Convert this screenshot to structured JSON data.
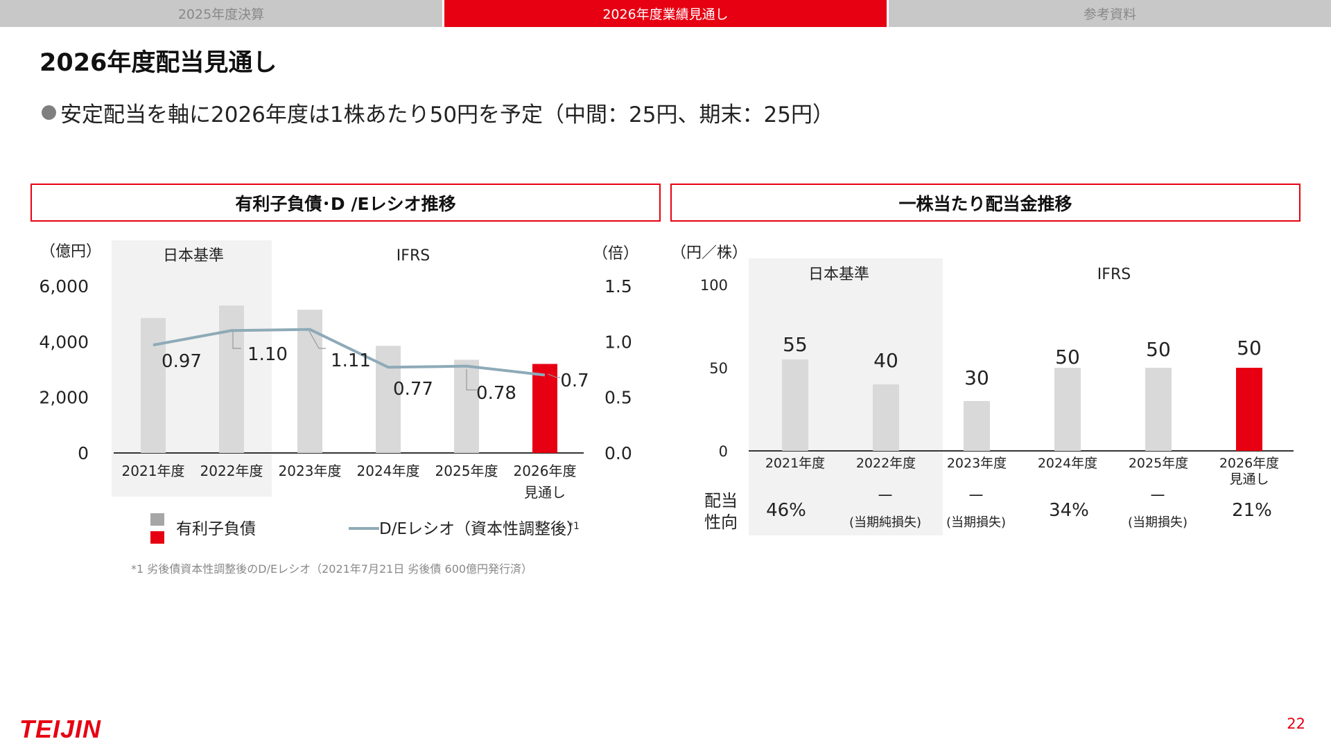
{
  "tabs": [
    {
      "label": "2025年度決算",
      "active": false
    },
    {
      "label": "2026年度業績見通し",
      "active": true
    },
    {
      "label": "参考資料",
      "active": false
    }
  ],
  "page_title": "2026年度配当見通し",
  "bullet": "安定配当を軸に2026年度は1株あたり50円を予定（中間：25円、期末：25円）",
  "left_panel": {
    "title": "有利子負債･D /Eレシオ推移",
    "y_left_unit": "（億円）",
    "y_right_unit": "（倍）",
    "region_labels": [
      "日本基準",
      "IFRS"
    ],
    "legend_debt": "有利子負債",
    "legend_de": "D/Eレシオ（資本性調整後）",
    "legend_de_note": "*1",
    "footnote": "*1 劣後債資本性調整後のD/Eレシオ（2021年7月21日 劣後債 600億円発行済）"
  },
  "right_panel": {
    "title": "一株当たり配当金推移",
    "y_unit": "（円／株）",
    "region_labels": [
      "日本基準",
      "IFRS"
    ],
    "payout_label_1": "配当",
    "payout_label_2": "性向"
  },
  "colors": {
    "accent": "#e60012",
    "bar": "#d9d9d9",
    "bar_legend": "#a6a6a6",
    "line": "#8eaab7",
    "shade": "#f2f2f2"
  },
  "chart_data": [
    {
      "type": "bar",
      "title": "有利子負債･D /Eレシオ推移",
      "categories": [
        "2021年度",
        "2022年度",
        "2023年度",
        "2024年度",
        "2025年度",
        "2026年度\n見通し"
      ],
      "y_ticks": [
        "6,000",
        "4,000",
        "2,000",
        "0"
      ],
      "y2_ticks": [
        "1.5",
        "1.0",
        "0.5",
        "0.0"
      ],
      "ylim": [
        0,
        6000
      ],
      "y2lim": [
        0,
        1.5
      ],
      "series": [
        {
          "name": "有利子負債",
          "type": "bar",
          "values": [
            4850,
            5300,
            5150,
            3850,
            3350,
            3200
          ]
        },
        {
          "name": "D/Eレシオ（資本性調整後）",
          "type": "line",
          "axis": "right",
          "values": [
            0.97,
            1.1,
            1.11,
            0.77,
            0.78,
            0.7
          ],
          "labels": [
            "0.97",
            "1.10",
            "1.11",
            "0.77",
            "0.78",
            "0.7"
          ]
        }
      ],
      "highlight_last": true
    },
    {
      "type": "bar",
      "title": "一株当たり配当金推移",
      "categories": [
        "2021年度",
        "2022年度",
        "2023年度",
        "2024年度",
        "2025年度",
        "2026年度\n見通し"
      ],
      "y_ticks": [
        "100",
        "50",
        "0"
      ],
      "ylim": [
        0,
        100
      ],
      "series": [
        {
          "name": "一株当たり配当金",
          "values": [
            55,
            40,
            30,
            50,
            50,
            50
          ],
          "labels": [
            "55",
            "40",
            "30",
            "50",
            "50",
            "50"
          ]
        }
      ],
      "payout": [
        {
          "main": "46%",
          "note": ""
        },
        {
          "main": "－",
          "note": "(当期純損失)"
        },
        {
          "main": "－",
          "note": "(当期損失)"
        },
        {
          "main": "34%",
          "note": ""
        },
        {
          "main": "－",
          "note": "(当期損失)"
        },
        {
          "main": "21%",
          "note": ""
        }
      ],
      "highlight_last": true
    }
  ],
  "logo_text": "TEIJIN",
  "page_number": "22"
}
